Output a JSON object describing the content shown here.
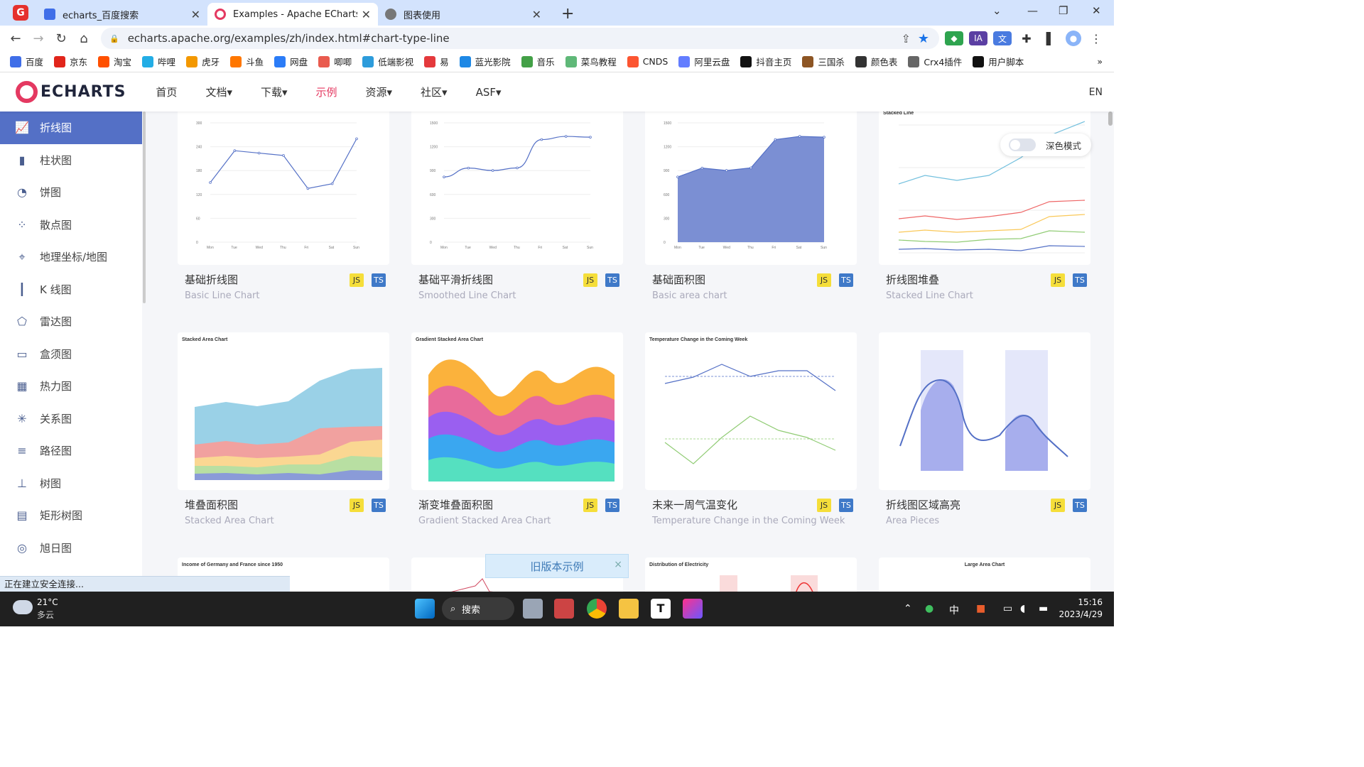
{
  "browser": {
    "tabs": [
      {
        "label": "echarts_百度搜索",
        "color": "#3f6ee8"
      },
      {
        "label": "Examples - Apache ECharts",
        "color": "#e43961"
      },
      {
        "label": "图表使用",
        "color": "#555"
      }
    ],
    "url": "echarts.apache.org/examples/zh/index.html#chart-type-line",
    "bookmarks": [
      {
        "label": "百度",
        "color": "#3f6ee8"
      },
      {
        "label": "京东",
        "color": "#e1251b"
      },
      {
        "label": "淘宝",
        "color": "#ff5000"
      },
      {
        "label": "哔哩",
        "color": "#23ade5"
      },
      {
        "label": "虎牙",
        "color": "#f39800"
      },
      {
        "label": "斗鱼",
        "color": "#ff7700"
      },
      {
        "label": "网盘",
        "color": "#2b7cf7"
      },
      {
        "label": "唧唧",
        "color": "#e95b4e"
      },
      {
        "label": "低端影视",
        "color": "#2d9cdb"
      },
      {
        "label": "易",
        "color": "#e4393c"
      },
      {
        "label": "蓝光影院",
        "color": "#1e88e5"
      },
      {
        "label": "音乐",
        "color": "#43a047"
      },
      {
        "label": "菜鸟教程",
        "color": "#5fb878"
      },
      {
        "label": "CNDS",
        "color": "#fc5531"
      },
      {
        "label": "阿里云盘",
        "color": "#637dff"
      },
      {
        "label": "抖音主页",
        "color": "#111"
      },
      {
        "label": "三国杀",
        "color": "#8d5524"
      },
      {
        "label": "颜色表",
        "color": "#333"
      },
      {
        "label": "Crx4插件",
        "color": "#666"
      },
      {
        "label": "用户脚本",
        "color": "#111"
      }
    ],
    "more": "»"
  },
  "site": {
    "logo": "ECHARTS",
    "nav": [
      "首页",
      "文档▾",
      "下载▾",
      "示例",
      "资源▾",
      "社区▾",
      "ASF▾"
    ],
    "lang": "EN",
    "dark_mode": "深色模式",
    "old_version": "旧版本示例",
    "close": "×",
    "sidebar": [
      {
        "label": "折线图",
        "icon": "line-chart-icon",
        "glyph": "📈"
      },
      {
        "label": "柱状图",
        "icon": "bar-chart-icon",
        "glyph": "▮"
      },
      {
        "label": "饼图",
        "icon": "pie-chart-icon",
        "glyph": "◔"
      },
      {
        "label": "散点图",
        "icon": "scatter-icon",
        "glyph": "⁘"
      },
      {
        "label": "地理坐标/地图",
        "icon": "map-icon",
        "glyph": "⌖"
      },
      {
        "label": "K 线图",
        "icon": "candlestick-icon",
        "glyph": "┃"
      },
      {
        "label": "雷达图",
        "icon": "radar-icon",
        "glyph": "⬠"
      },
      {
        "label": "盒须图",
        "icon": "boxplot-icon",
        "glyph": "▭"
      },
      {
        "label": "热力图",
        "icon": "heatmap-icon",
        "glyph": "▦"
      },
      {
        "label": "关系图",
        "icon": "graph-icon",
        "glyph": "✳"
      },
      {
        "label": "路径图",
        "icon": "lines-icon",
        "glyph": "≡"
      },
      {
        "label": "树图",
        "icon": "tree-icon",
        "glyph": "⊥"
      },
      {
        "label": "矩形树图",
        "icon": "treemap-icon",
        "glyph": "▤"
      },
      {
        "label": "旭日图",
        "icon": "sunburst-icon",
        "glyph": "◎"
      }
    ],
    "cards": [
      {
        "title": "基础折线图",
        "sub": "Basic Line Chart",
        "js": "JS",
        "ts": "TS"
      },
      {
        "title": "基础平滑折线图",
        "sub": "Smoothed Line Chart",
        "js": "JS",
        "ts": "TS"
      },
      {
        "title": "基础面积图",
        "sub": "Basic area chart",
        "js": "JS",
        "ts": "TS"
      },
      {
        "title": "折线图堆叠",
        "sub": "Stacked Line Chart",
        "js": "JS",
        "ts": "TS"
      },
      {
        "title": "堆叠面积图",
        "sub": "Stacked Area Chart",
        "js": "JS",
        "ts": "TS"
      },
      {
        "title": "渐变堆叠面积图",
        "sub": "Gradient Stacked Area Chart",
        "js": "JS",
        "ts": "TS"
      },
      {
        "title": "未来一周气温变化",
        "sub": "Temperature Change in the Coming Week",
        "js": "JS",
        "ts": "TS"
      },
      {
        "title": "折线图区域高亮",
        "sub": "Area Pieces",
        "js": "JS",
        "ts": "TS"
      }
    ],
    "thumb_texts": {
      "stacked_line": "Stacked Line",
      "stacked_area": "Stacked Area Chart",
      "gradient": "Gradient Stacked Area Chart",
      "temperature": "Temperature Change in the Coming Week",
      "income": "Income of Germany and France since 1950",
      "electricity": "Distribution of Electricity",
      "large_area": "Large Area Chart"
    },
    "status": "正在建立安全连接..."
  },
  "taskbar": {
    "temp": "21°C",
    "weather": "多云",
    "search": "搜索",
    "ime": "中",
    "time": "15:16",
    "date": "2023/4/29"
  },
  "chart_data": [
    {
      "type": "line",
      "categories": [
        "Mon",
        "Tue",
        "Wed",
        "Thu",
        "Fri",
        "Sat",
        "Sun"
      ],
      "values": [
        150,
        230,
        224,
        218,
        135,
        147,
        260
      ],
      "ylim": [
        0,
        300
      ]
    },
    {
      "type": "line",
      "categories": [
        "Mon",
        "Tue",
        "Wed",
        "Thu",
        "Fri",
        "Sat",
        "Sun"
      ],
      "values": [
        820,
        932,
        901,
        934,
        1290,
        1330,
        1320
      ],
      "ylim": [
        0,
        1500
      ]
    },
    {
      "type": "area",
      "categories": [
        "Mon",
        "Tue",
        "Wed",
        "Thu",
        "Fri",
        "Sat",
        "Sun"
      ],
      "values": [
        820,
        932,
        901,
        934,
        1290,
        1330,
        1320
      ],
      "ylim": [
        0,
        1500
      ]
    }
  ]
}
